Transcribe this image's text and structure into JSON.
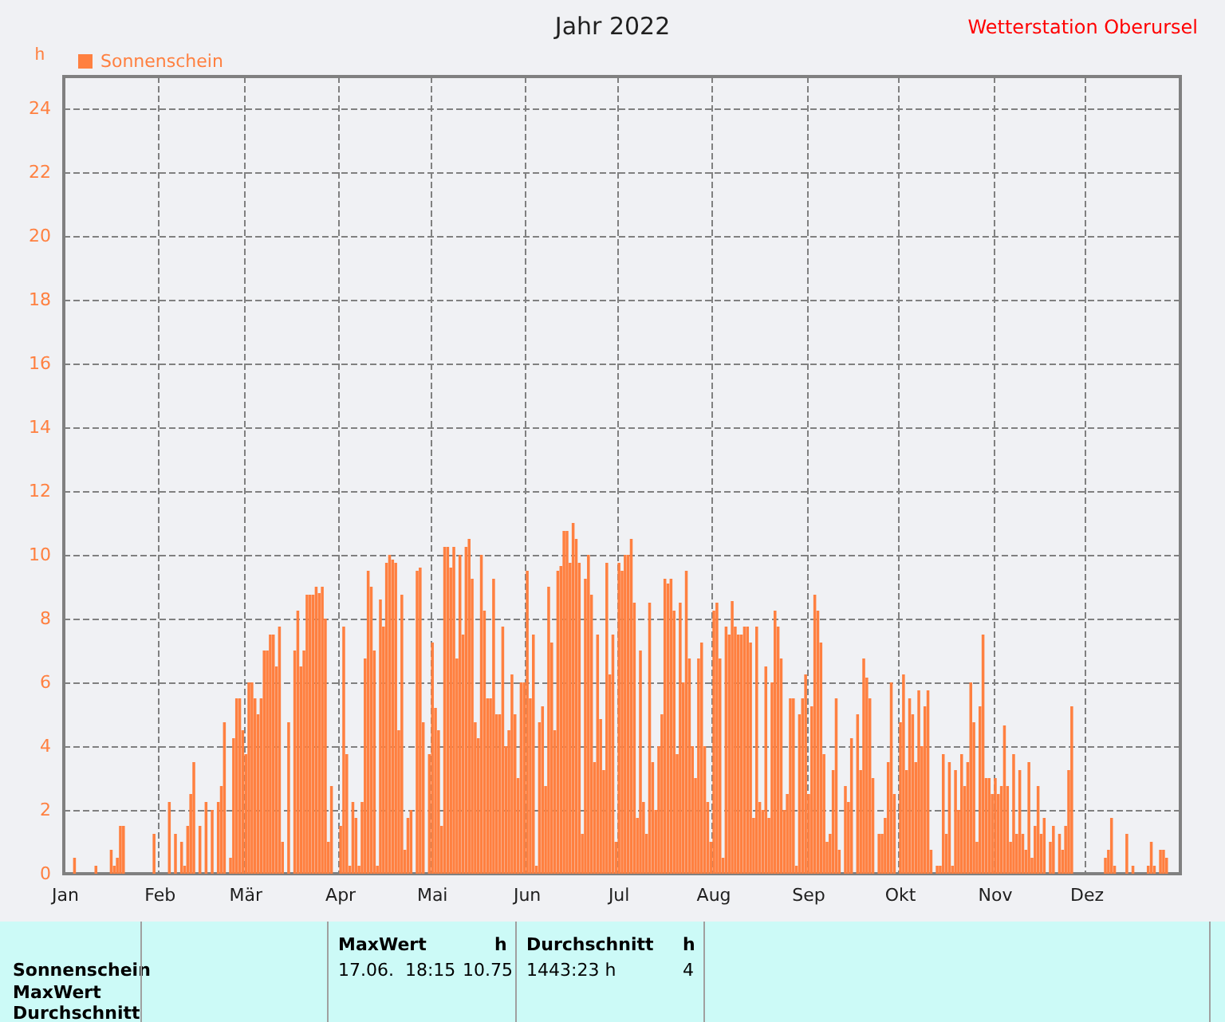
{
  "chart_data": {
    "type": "bar",
    "title": "Jahr 2022",
    "subtitle": "Wetterstation Oberursel",
    "ylabel": "h",
    "categories": [
      "Jan",
      null,
      null,
      null,
      null,
      null,
      null,
      null,
      null,
      null,
      null,
      null,
      null,
      null,
      null,
      null,
      null,
      null,
      null,
      null,
      null,
      null,
      null,
      null,
      null,
      null,
      null,
      null,
      null,
      null,
      null,
      "Feb",
      null,
      null,
      null,
      null,
      null,
      null,
      null,
      null,
      null,
      null,
      null,
      null,
      null,
      null,
      null,
      null,
      null,
      null,
      null,
      null,
      null,
      null,
      null,
      null,
      null,
      null,
      null,
      "Mär",
      null,
      null,
      null,
      null,
      null,
      null,
      null,
      null,
      null,
      null,
      null,
      null,
      null,
      null,
      null,
      null,
      null,
      null,
      null,
      null,
      null,
      null,
      null,
      null,
      null,
      null,
      null,
      null,
      null,
      null,
      "Apr",
      null,
      null,
      null,
      null,
      null,
      null,
      null,
      null,
      null,
      null,
      null,
      null,
      null,
      null,
      null,
      null,
      null,
      null,
      null,
      null,
      null,
      null,
      null,
      null,
      null,
      null,
      null,
      null,
      null,
      "Mai",
      null,
      null,
      null,
      null,
      null,
      null,
      null,
      null,
      null,
      null,
      null,
      null,
      null,
      null,
      null,
      null,
      null,
      null,
      null,
      null,
      null,
      null,
      null,
      null,
      null,
      null,
      null,
      null,
      null,
      null,
      "Jun",
      null,
      null,
      null,
      null,
      null,
      null,
      null,
      null,
      null,
      null,
      null,
      null,
      null,
      null,
      null,
      null,
      null,
      null,
      null,
      null,
      null,
      null,
      null,
      null,
      null,
      null,
      null,
      null,
      null,
      "Jul",
      null,
      null,
      null,
      null,
      null,
      null,
      null,
      null,
      null,
      null,
      null,
      null,
      null,
      null,
      null,
      null,
      null,
      null,
      null,
      null,
      null,
      null,
      null,
      null,
      null,
      null,
      null,
      null,
      null,
      null,
      "Aug",
      null,
      null,
      null,
      null,
      null,
      null,
      null,
      null,
      null,
      null,
      null,
      null,
      null,
      null,
      null,
      null,
      null,
      null,
      null,
      null,
      null,
      null,
      null,
      null,
      null,
      null,
      null,
      null,
      null,
      null,
      "Sep",
      null,
      null,
      null,
      null,
      null,
      null,
      null,
      null,
      null,
      null,
      null,
      null,
      null,
      null,
      null,
      null,
      null,
      null,
      null,
      null,
      null,
      null,
      null,
      null,
      null,
      null,
      null,
      null,
      null,
      "Okt",
      null,
      null,
      null,
      null,
      null,
      null,
      null,
      null,
      null,
      null,
      null,
      null,
      null,
      null,
      null,
      null,
      null,
      null,
      null,
      null,
      null,
      null,
      null,
      null,
      null,
      null,
      null,
      null,
      null,
      null,
      "Nov",
      null,
      null,
      null,
      null,
      null,
      null,
      null,
      null,
      null,
      null,
      null,
      null,
      null,
      null,
      null,
      null,
      null,
      null,
      null,
      null,
      null,
      null,
      null,
      null,
      null,
      null,
      null,
      null,
      null,
      "Dez",
      null,
      null,
      null,
      null,
      null,
      null,
      null,
      null,
      null,
      null,
      null,
      null,
      null,
      null,
      null,
      null,
      null,
      null,
      null,
      null,
      null,
      null,
      null,
      null,
      null,
      null,
      null,
      null,
      null,
      null
    ],
    "series": [
      {
        "name": "Sonnenschein",
        "color": "#ff8040",
        "values": [
          0,
          0,
          0,
          0.5,
          0,
          0,
          0,
          0,
          0,
          0,
          0.25,
          0,
          0,
          0,
          0,
          0.75,
          0.25,
          0.5,
          1.5,
          1.5,
          0,
          0,
          0,
          0,
          0,
          0,
          0,
          0,
          0,
          1.25,
          0,
          0,
          0,
          0,
          2.25,
          0,
          1.25,
          0,
          1,
          0.25,
          1.5,
          2.5,
          3.5,
          0,
          1.5,
          0,
          2.25,
          0,
          2,
          0,
          2.25,
          2.75,
          4.75,
          0,
          0.5,
          4.25,
          5.5,
          5.5,
          4.5,
          3.75,
          6,
          6,
          5.5,
          5,
          5.5,
          7,
          7,
          7.5,
          7.5,
          6.5,
          7.75,
          1,
          0,
          4.75,
          0,
          7,
          8.25,
          6.5,
          7,
          8.75,
          8.75,
          8.75,
          9,
          8.8,
          9,
          8,
          1,
          2.75,
          0,
          0,
          1.5,
          7.75,
          3.75,
          0.25,
          2.25,
          1.75,
          0.25,
          2.25,
          6.75,
          9.5,
          9,
          7,
          0.25,
          8.6,
          7.75,
          9.75,
          10,
          9.85,
          9.75,
          4.5,
          8.75,
          0.75,
          1.75,
          2,
          0,
          9.5,
          9.6,
          4.75,
          0,
          3.75,
          7.25,
          5.2,
          4.5,
          1.5,
          10.25,
          10.25,
          9.6,
          10.25,
          6.75,
          10,
          7.5,
          10.25,
          10.5,
          9.25,
          4.75,
          4.25,
          10,
          8.25,
          5.5,
          5.5,
          9.25,
          5,
          5,
          7.75,
          4,
          4.5,
          6.25,
          5,
          3,
          6,
          6,
          9.5,
          5.5,
          7.5,
          0.25,
          4.75,
          5.25,
          2.75,
          9,
          7.25,
          4.5,
          9.5,
          9.65,
          10.75,
          10.75,
          9.75,
          11,
          10.5,
          9.75,
          1.25,
          9.25,
          10,
          8.75,
          3.5,
          7.5,
          4.85,
          3.25,
          9.75,
          6.25,
          7.5,
          1,
          9.75,
          9.5,
          10,
          10,
          10.5,
          8.5,
          1.75,
          7,
          2.25,
          1.25,
          8.5,
          3.5,
          2,
          4,
          5,
          9.25,
          9.1,
          9.25,
          8.25,
          3.75,
          8.5,
          6,
          9.5,
          6.75,
          4,
          3,
          6.75,
          7.25,
          4,
          2.25,
          1,
          8.25,
          8.5,
          6.75,
          0.5,
          7.75,
          7.5,
          8.55,
          7.75,
          7.5,
          7.5,
          7.75,
          7.75,
          7.25,
          1.75,
          7.75,
          2.25,
          2,
          6.5,
          1.75,
          6,
          8.25,
          7.75,
          6.75,
          2,
          2.5,
          5.5,
          5.5,
          0.25,
          5,
          5.5,
          6.25,
          2.5,
          5.25,
          8.75,
          8.25,
          7.25,
          3.75,
          1,
          1.25,
          3.25,
          5.5,
          0.75,
          0,
          2.75,
          2.25,
          4.25,
          0,
          5,
          3.25,
          6.75,
          6.15,
          5.5,
          3,
          0,
          1.25,
          1.25,
          1.75,
          3.5,
          6,
          2.5,
          0,
          4.75,
          6.25,
          3.25,
          5.5,
          5,
          3.5,
          5.75,
          4,
          5.25,
          5.75,
          0.75,
          0,
          0.25,
          0.25,
          3.75,
          1.25,
          3.5,
          0.25,
          3.25,
          2,
          3.75,
          2.75,
          3.5,
          6,
          4.75,
          1,
          5.25,
          7.5,
          3,
          3,
          2.5,
          3,
          2.5,
          2.75,
          4.65,
          2.75,
          1,
          3.75,
          1.25,
          3.25,
          1.25,
          0.75,
          3.5,
          0.5,
          1.5,
          2.75,
          1.25,
          1.75,
          0,
          1,
          1.5,
          0,
          1.25,
          0.75,
          1.5,
          3.25,
          5.25,
          0,
          0,
          0,
          0,
          0,
          0,
          0,
          0,
          0,
          0,
          0.5,
          0.75,
          1.75,
          0.25,
          0,
          0,
          0,
          1.25,
          0,
          0.25,
          0,
          0,
          0,
          0,
          0.25,
          1,
          0.25,
          0,
          0.75,
          0.75,
          0.5,
          0,
          0,
          0,
          0
        ]
      }
    ],
    "ylim": [
      0,
      25
    ],
    "yticks": [
      0,
      2,
      4,
      6,
      8,
      10,
      12,
      14,
      16,
      18,
      20,
      22,
      24
    ],
    "grid": true,
    "legend": "top left",
    "annotations": [
      "Sonnenschein",
      "MaxWert",
      "Durchschnitt",
      "MaxWert",
      "h",
      "Durchschnitt",
      "h",
      "17.06.  18:15",
      "10.75",
      "1443:23 h",
      "4"
    ]
  }
}
